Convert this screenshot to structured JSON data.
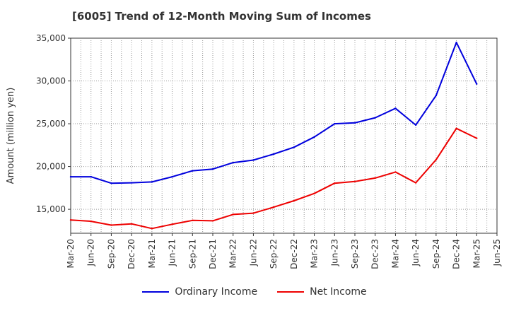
{
  "chart_data": {
    "type": "line",
    "title": "[6005]  Trend of 12-Month Moving Sum of Incomes",
    "xlabel": "",
    "ylabel": "Amount (million yen)",
    "ylim": [
      12200,
      35000
    ],
    "yticks": [
      15000,
      20000,
      25000,
      30000,
      35000
    ],
    "ytick_labels": [
      "15,000",
      "20,000",
      "25,000",
      "30,000",
      "35,000"
    ],
    "grid": true,
    "legend_position": "bottom",
    "xtick_labels": [
      "Mar-20",
      "Jun-20",
      "Sep-20",
      "Dec-20",
      "Mar-21",
      "Jun-21",
      "Sep-21",
      "Dec-21",
      "Mar-22",
      "Jun-22",
      "Sep-22",
      "Dec-22",
      "Mar-23",
      "Jun-23",
      "Sep-23",
      "Dec-23",
      "Mar-24",
      "Jun-24",
      "Sep-24",
      "Dec-24",
      "Mar-25",
      "Jun-25"
    ],
    "categories": [
      "Mar-20",
      "Jun-20",
      "Sep-20",
      "Dec-20",
      "Mar-21",
      "Jun-21",
      "Sep-21",
      "Dec-21",
      "Mar-22",
      "Jun-22",
      "Sep-22",
      "Dec-22",
      "Mar-23",
      "Jun-23",
      "Sep-23",
      "Dec-23",
      "Mar-24",
      "Jun-24",
      "Sep-24",
      "Dec-24",
      "Mar-25"
    ],
    "series": [
      {
        "name": "Ordinary Income",
        "color": "#0000dd",
        "values": [
          18800,
          18800,
          18050,
          18100,
          18200,
          18800,
          19500,
          19700,
          20450,
          20750,
          21450,
          22250,
          23450,
          25000,
          25100,
          25700,
          26800,
          24850,
          28300,
          34500,
          29650
        ]
      },
      {
        "name": "Net Income",
        "color": "#ee0000",
        "values": [
          13750,
          13600,
          13150,
          13300,
          12750,
          13250,
          13700,
          13650,
          14400,
          14550,
          15250,
          16000,
          16850,
          18050,
          18250,
          18650,
          19350,
          18100,
          20800,
          24450,
          23300
        ]
      }
    ]
  }
}
